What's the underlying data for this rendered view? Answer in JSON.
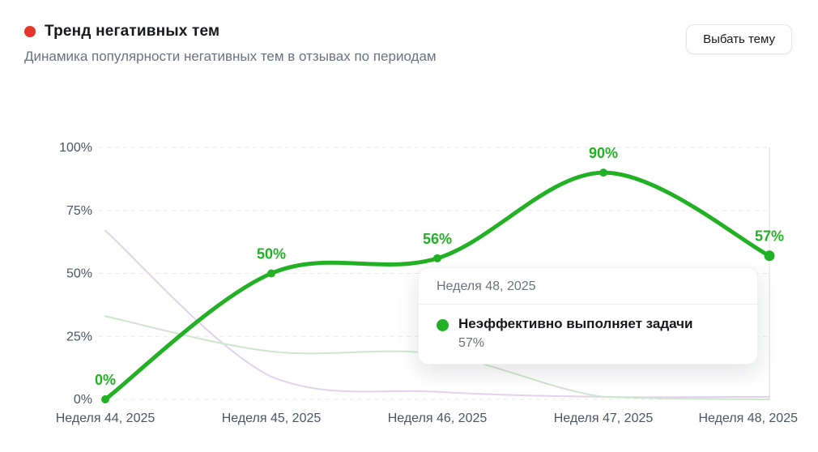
{
  "header": {
    "dot_color": "#e7342c",
    "title": "Тренд негативных тем",
    "subtitle": "Динамика популярности негативных тем в отзывах по периодам",
    "button_label": "Выбать тему"
  },
  "tooltip": {
    "period": "Неделя 48, 2025",
    "series_label": "Неэффективно выполняет задачи",
    "value": "57%",
    "dot_color": "#22b024"
  },
  "chart_data": {
    "type": "line",
    "title": "Тренд негативных тем",
    "categories": [
      "Неделя 44, 2025",
      "Неделя 45, 2025",
      "Неделя 46, 2025",
      "Неделя 47, 2025",
      "Неделя 48, 2025"
    ],
    "series": [
      {
        "name": "Неэффективно выполняет задачи",
        "color": "#22b024",
        "width": 5,
        "values": [
          0,
          50,
          56,
          90,
          57
        ],
        "labels": [
          "0%",
          "50%",
          "56%",
          "90%",
          "57%"
        ],
        "show_points": true
      },
      {
        "name": "series-2",
        "color": "#e3d0ee",
        "width": 2,
        "values": [
          67,
          9,
          3,
          1,
          1
        ],
        "labels": null,
        "show_points": false
      },
      {
        "name": "series-3",
        "color": "#cde7cd",
        "width": 2,
        "values": [
          33,
          19,
          18,
          1,
          0
        ],
        "labels": null,
        "show_points": false
      }
    ],
    "y_ticks": [
      "0%",
      "25%",
      "50%",
      "75%",
      "100%"
    ],
    "ylim": [
      0,
      100
    ],
    "grid": "dashed-horizontal",
    "grid_color": "#e7e8ea",
    "axis_label_color": "#4b5563",
    "legend_position": "none"
  }
}
